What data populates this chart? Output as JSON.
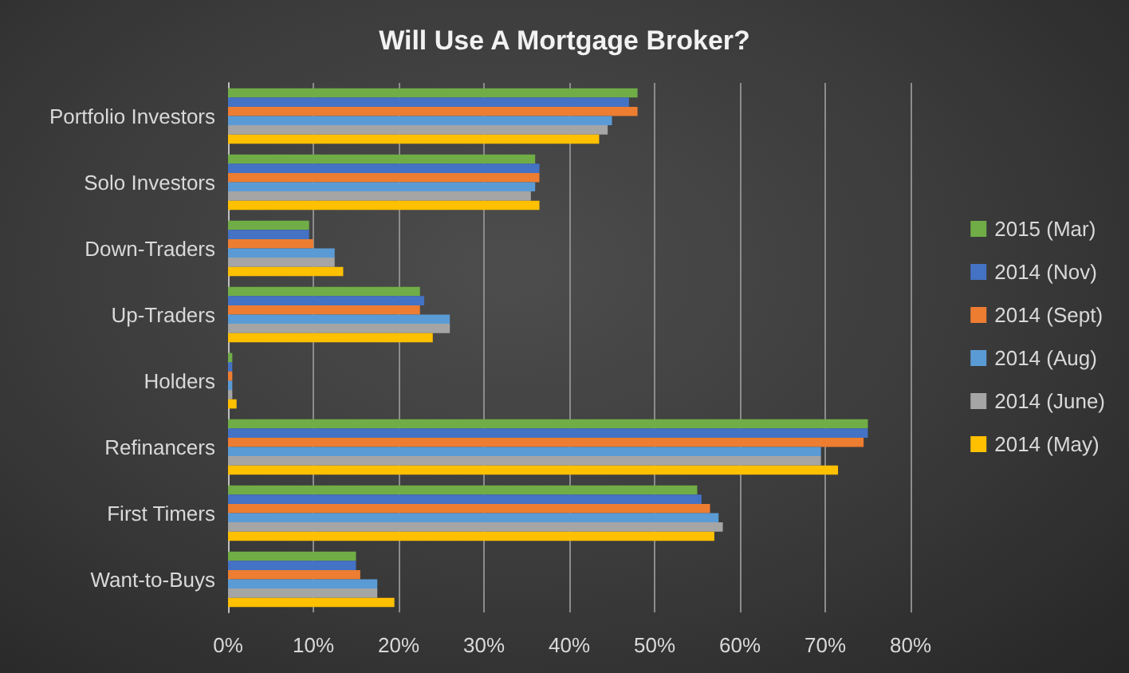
{
  "chart_data": {
    "type": "bar",
    "orientation": "horizontal",
    "title": "Will Use A Mortgage Broker?",
    "categories": [
      "Portfolio Investors",
      "Solo Investors",
      "Down-Traders",
      "Up-Traders",
      "Holders",
      "Refinancers",
      "First Timers",
      "Want-to-Buys"
    ],
    "series": [
      {
        "name": "2015 (Mar)",
        "color": "#70ad47",
        "values": [
          48,
          36,
          9.5,
          22.5,
          0.5,
          75,
          55,
          15
        ]
      },
      {
        "name": "2014 (Nov)",
        "color": "#4472c4",
        "values": [
          47,
          36.5,
          9.5,
          23,
          0.5,
          75,
          55.5,
          15
        ]
      },
      {
        "name": "2014 (Sept)",
        "color": "#ed7d31",
        "values": [
          48,
          36.5,
          10,
          22.5,
          0.5,
          74.5,
          56.5,
          15.5
        ]
      },
      {
        "name": "2014 (Aug)",
        "color": "#5b9bd5",
        "values": [
          45,
          36,
          12.5,
          26,
          0.5,
          69.5,
          57.5,
          17.5
        ]
      },
      {
        "name": "2014 (June)",
        "color": "#a5a5a5",
        "values": [
          44.5,
          35.5,
          12.5,
          26,
          0.5,
          69.5,
          58,
          17.5
        ]
      },
      {
        "name": "2014 (May)",
        "color": "#ffc000",
        "values": [
          43.5,
          36.5,
          13.5,
          24,
          1,
          71.5,
          57,
          19.5
        ]
      }
    ],
    "xlim": [
      0,
      80
    ],
    "xticks": [
      {
        "value": 0,
        "label": "0%"
      },
      {
        "value": 10,
        "label": "10%"
      },
      {
        "value": 20,
        "label": "20%"
      },
      {
        "value": 30,
        "label": "30%"
      },
      {
        "value": 40,
        "label": "40%"
      },
      {
        "value": 50,
        "label": "50%"
      },
      {
        "value": 60,
        "label": "60%"
      },
      {
        "value": 70,
        "label": "70%"
      },
      {
        "value": 80,
        "label": "80%"
      }
    ],
    "grid": "x",
    "legend": "right"
  }
}
